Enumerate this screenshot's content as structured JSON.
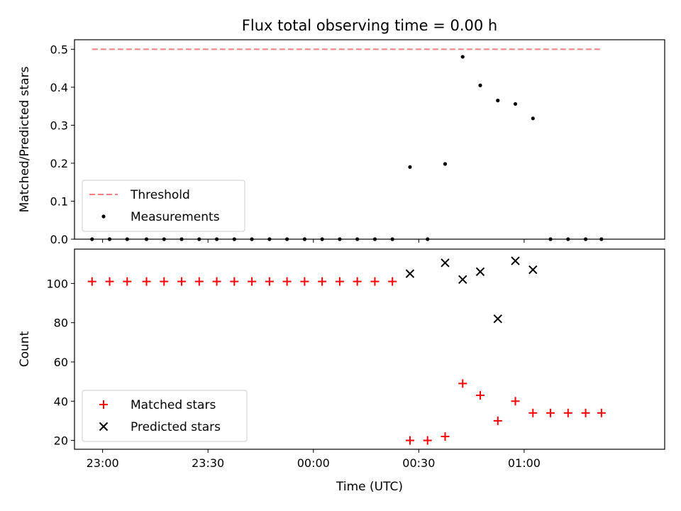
{
  "chart_data": [
    {
      "type": "scatter",
      "title": "Flux total observing time = 0.00 h",
      "ylabel": "Matched/Predicted stars",
      "xlabel": "",
      "ylim": [
        0,
        0.525
      ],
      "yticks": [
        0.0,
        0.1,
        0.2,
        0.3,
        0.4,
        0.5
      ],
      "ytick_labels": [
        "0.0",
        "0.1",
        "0.2",
        "0.3",
        "0.4",
        "0.5"
      ],
      "x_range_minutes": [
        "22:52",
        "01:40"
      ],
      "xticks": [
        "23:00",
        "23:30",
        "00:00",
        "00:30",
        "01:00"
      ],
      "x_tick_labels_visible": false,
      "legend": {
        "position": "lower-left"
      },
      "threshold": {
        "name": "Threshold",
        "value": 0.5,
        "x_start": "22:57",
        "x_end": "01:22",
        "color": "#f08080",
        "style": "dashed"
      },
      "series": [
        {
          "name": "Measurements",
          "color": "#000000",
          "marker": "dot",
          "x": [
            "22:57",
            "23:02",
            "23:07",
            "23:12.5",
            "23:17.5",
            "23:22.5",
            "23:27.5",
            "23:32.5",
            "23:37.5",
            "23:42.5",
            "23:47.5",
            "23:52.5",
            "23:57.5",
            "00:02.5",
            "00:07.5",
            "00:12.5",
            "00:17.5",
            "00:22.5",
            "00:27.5",
            "00:32.5",
            "00:37.5",
            "00:42.5",
            "00:47.5",
            "00:52.5",
            "00:57.5",
            "01:02.5",
            "01:07.5",
            "01:12.5",
            "01:17.5",
            "01:22"
          ],
          "y": [
            0,
            0,
            0,
            0,
            0,
            0,
            0,
            0,
            0,
            0,
            0,
            0,
            0,
            0,
            0,
            0,
            0,
            0,
            0.19,
            0,
            0.198,
            0.48,
            0.405,
            0.365,
            0.356,
            0.318,
            0,
            0,
            0,
            0
          ]
        }
      ]
    },
    {
      "type": "scatter",
      "title": "",
      "ylabel": "Count",
      "xlabel": "Time (UTC)",
      "ylim": [
        15.5,
        117.5
      ],
      "yticks": [
        20,
        40,
        60,
        80,
        100
      ],
      "ytick_labels": [
        "20",
        "40",
        "60",
        "80",
        "100"
      ],
      "x_range_minutes": [
        "22:52",
        "01:40"
      ],
      "xticks": [
        "23:00",
        "23:30",
        "00:00",
        "00:30",
        "01:00"
      ],
      "xtick_labels": [
        "23:00",
        "23:30",
        "00:00",
        "00:30",
        "01:00"
      ],
      "legend": {
        "position": "lower-left"
      },
      "series": [
        {
          "name": "Matched stars",
          "color": "#ff0000",
          "marker": "plus",
          "x": [
            "22:57",
            "23:02",
            "23:07",
            "23:12.5",
            "23:17.5",
            "23:22.5",
            "23:27.5",
            "23:32.5",
            "23:37.5",
            "23:42.5",
            "23:47.5",
            "23:52.5",
            "23:57.5",
            "00:02.5",
            "00:07.5",
            "00:12.5",
            "00:17.5",
            "00:22.5",
            "00:27.5",
            "00:32.5",
            "00:37.5",
            "00:42.5",
            "00:47.5",
            "00:52.5",
            "00:57.5",
            "01:02.5",
            "01:07.5",
            "01:12.5",
            "01:17.5",
            "01:22"
          ],
          "y": [
            101,
            101,
            101,
            101,
            101,
            101,
            101,
            101,
            101,
            101,
            101,
            101,
            101,
            101,
            101,
            101,
            101,
            101,
            20,
            20,
            22,
            49,
            43,
            30,
            40,
            34,
            34,
            34,
            34,
            34
          ]
        },
        {
          "name": "Predicted stars",
          "color": "#000000",
          "marker": "x",
          "x": [
            "00:27.5",
            "00:37.5",
            "00:42.5",
            "00:47.5",
            "00:52.5",
            "00:57.5",
            "01:02.5"
          ],
          "y": [
            105,
            110.5,
            102,
            106,
            82,
            111.5,
            107
          ]
        }
      ]
    }
  ]
}
